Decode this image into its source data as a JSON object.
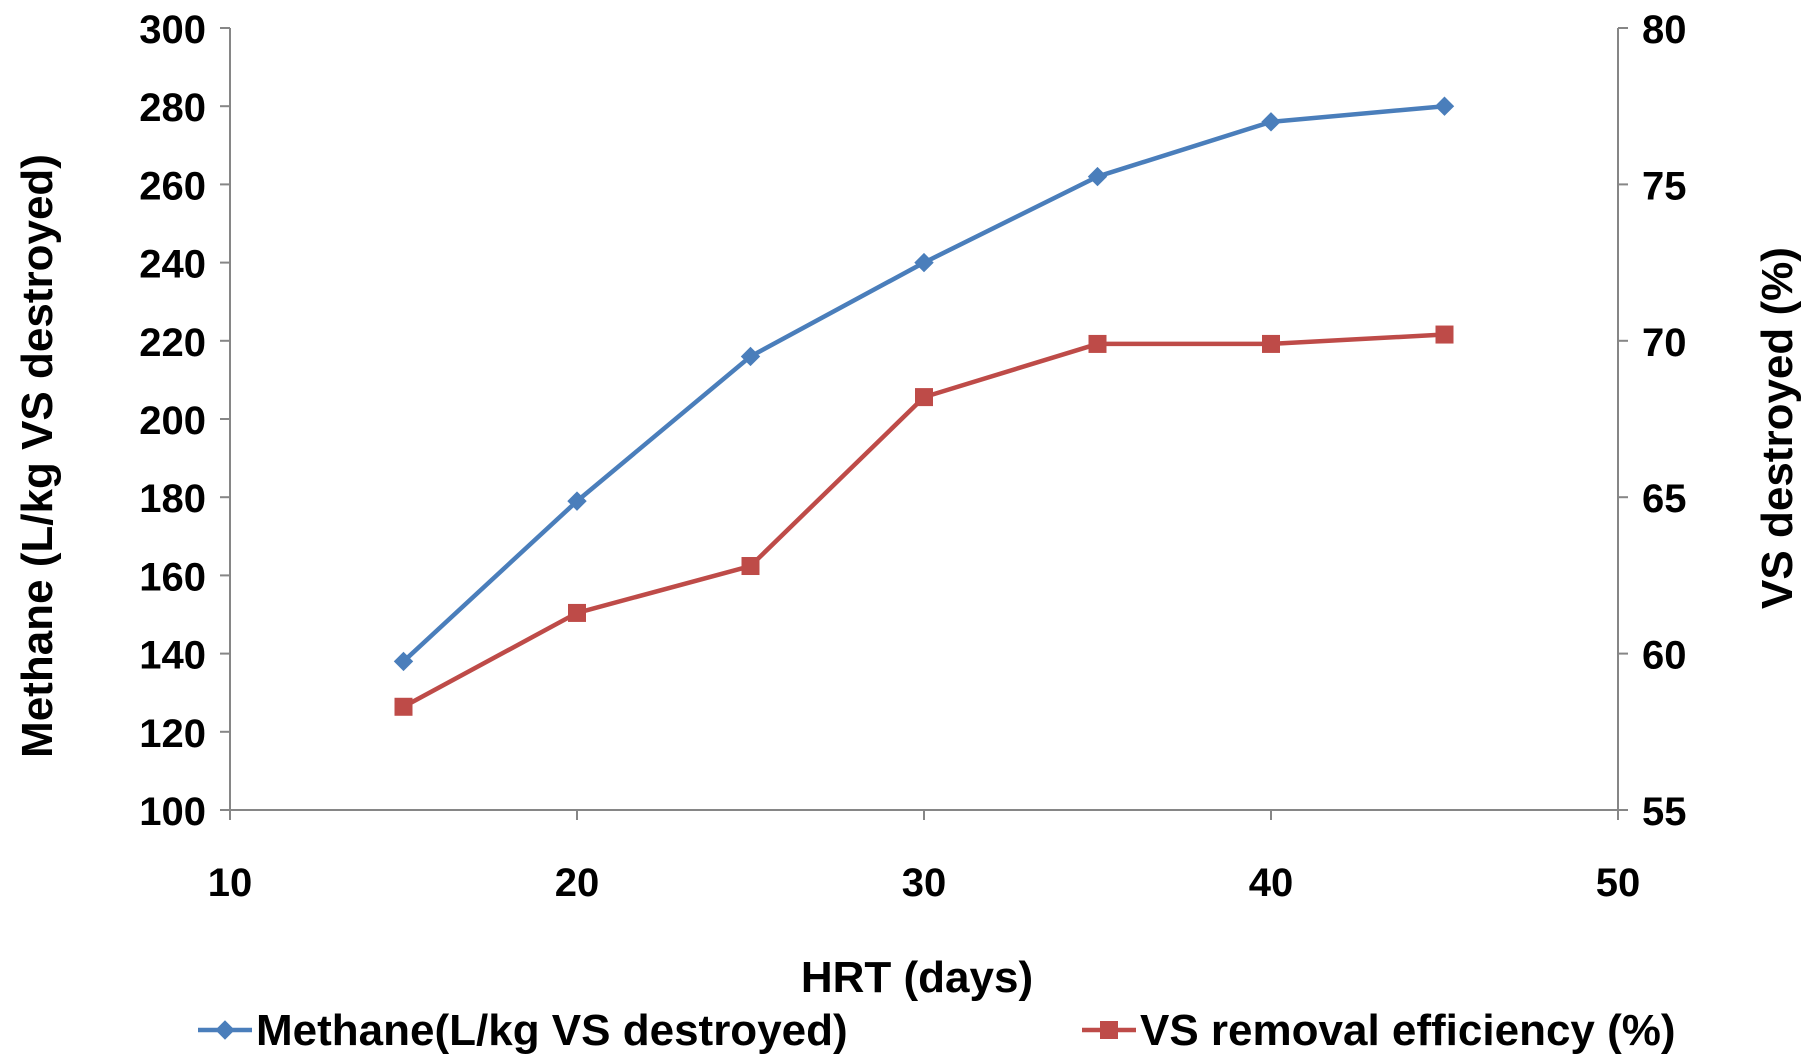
{
  "chart_data": {
    "type": "line",
    "x": [
      15,
      20,
      25,
      30,
      35,
      40,
      45
    ],
    "xlabel": "HRT (days)",
    "ylabel": "Methane (L/kg VS destroyed)",
    "y2label": "VS destroyed (%)",
    "xlim": [
      10,
      50
    ],
    "ylim": [
      100,
      300
    ],
    "y2lim": [
      55,
      80
    ],
    "xticks": [
      10,
      20,
      30,
      40,
      50
    ],
    "yticks": [
      100,
      120,
      140,
      160,
      180,
      200,
      220,
      240,
      260,
      280,
      300
    ],
    "y2ticks": [
      55,
      60,
      65,
      70,
      75,
      80
    ],
    "grid": false,
    "legend_position": "bottom",
    "series": [
      {
        "name": "Methane(L/kg VS destroyed)",
        "axis": "left",
        "marker": "diamond",
        "color": "#4a7ebb",
        "values": [
          138,
          179,
          216,
          240,
          262,
          276,
          280
        ]
      },
      {
        "name": "VS removal efficiency (%)",
        "axis": "right",
        "marker": "square",
        "color": "#be4b48",
        "values": [
          58.3,
          61.3,
          62.8,
          68.2,
          69.9,
          69.9,
          70.2
        ]
      }
    ]
  }
}
